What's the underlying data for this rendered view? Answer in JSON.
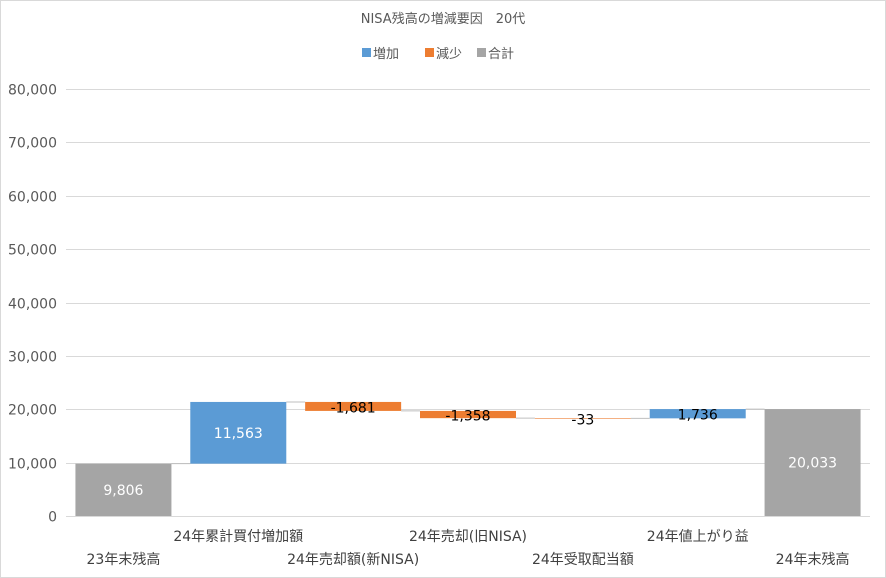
{
  "chart_data": {
    "type": "bar",
    "subtype": "waterfall",
    "title": "NISA残高の増減要因　20代",
    "legend": {
      "placement": "top",
      "items": [
        {
          "name": "増加",
          "color": "#5b9bd5"
        },
        {
          "name": "減少",
          "color": "#ed7d31"
        },
        {
          "name": "合計",
          "color": "#a5a5a5"
        }
      ]
    },
    "categories": [
      "23年末残高",
      "24年累計買付増加額",
      "24年売却額(新NISA)",
      "24年売却(旧NISA)",
      "24年受取配当額",
      "24年値上がり益",
      "24年末残高"
    ],
    "values": [
      9806,
      11563,
      -1681,
      -1358,
      -33,
      1736,
      20033
    ],
    "value_labels": [
      "9,806",
      "11,563",
      "-1,681",
      "-1,358",
      "-33",
      "1,736",
      "20,033"
    ],
    "kinds": [
      "total",
      "increase",
      "decrease",
      "decrease",
      "decrease",
      "increase",
      "total"
    ],
    "ylim": [
      0,
      80000
    ],
    "y_ticks": [
      0,
      10000,
      20000,
      30000,
      40000,
      50000,
      60000,
      70000,
      80000
    ],
    "y_tick_labels": [
      "0",
      "10,000",
      "20,000",
      "30,000",
      "40,000",
      "50,000",
      "60,000",
      "70,000",
      "80,000"
    ],
    "grid": true
  }
}
